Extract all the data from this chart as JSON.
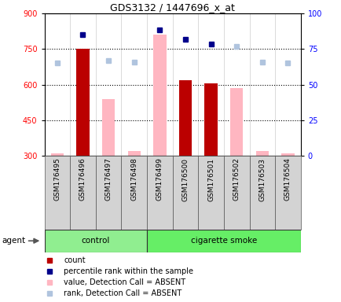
{
  "title": "GDS3132 / 1447696_x_at",
  "samples": [
    "GSM176495",
    "GSM176496",
    "GSM176497",
    "GSM176498",
    "GSM176499",
    "GSM176500",
    "GSM176501",
    "GSM176502",
    "GSM176503",
    "GSM176504"
  ],
  "count_values": [
    null,
    750,
    null,
    null,
    null,
    620,
    605,
    null,
    null,
    null
  ],
  "percentile_rank": [
    null,
    810,
    null,
    null,
    830,
    790,
    770,
    null,
    null,
    null
  ],
  "value_absent": [
    310,
    null,
    540,
    320,
    810,
    null,
    null,
    585,
    320,
    310
  ],
  "rank_absent": [
    690,
    null,
    700,
    695,
    null,
    null,
    null,
    760,
    695,
    690
  ],
  "ylim": [
    300,
    900
  ],
  "yticks": [
    300,
    450,
    600,
    750,
    900
  ],
  "right_yticks": [
    0,
    25,
    50,
    75,
    100
  ],
  "count_color": "#BB0000",
  "percentile_color": "#00008B",
  "value_absent_color": "#FFB6C1",
  "rank_absent_color": "#B0C4DE",
  "ctrl_color": "#90EE90",
  "smoke_color": "#66EE66",
  "bar_width": 0.5,
  "legend_items": [
    [
      "#BB0000",
      "count"
    ],
    [
      "#00008B",
      "percentile rank within the sample"
    ],
    [
      "#FFB6C1",
      "value, Detection Call = ABSENT"
    ],
    [
      "#B0C4DE",
      "rank, Detection Call = ABSENT"
    ]
  ]
}
